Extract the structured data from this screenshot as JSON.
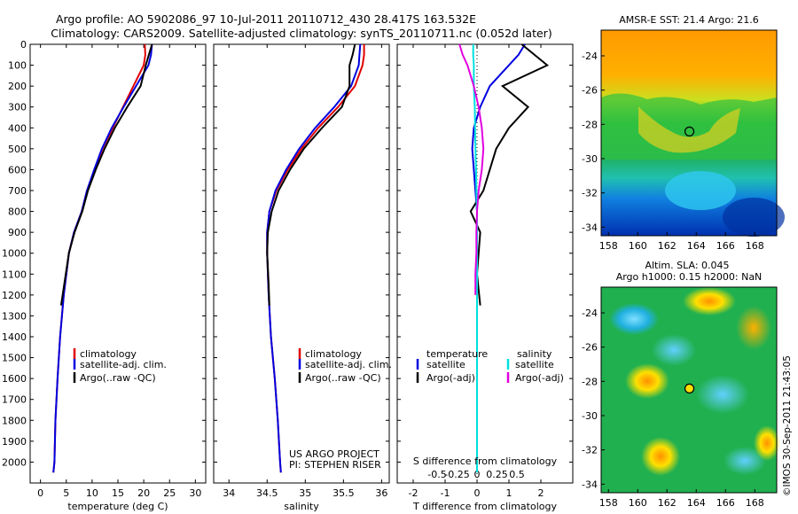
{
  "title": {
    "line1": "Argo profile: AO 5902086_97 10-Jul-2011 20110712_430 28.417S 163.532E",
    "line2": "Climatology: CARS2009. Satellite-adjusted climatology: synTS_20110711.nc (0.052d later)"
  },
  "colors": {
    "climatology": "#e00000",
    "satellite": "#0000e0",
    "argo": "#000000",
    "satellite_s": "#00e0e0",
    "argo_s": "#e000e0"
  },
  "chart_data": [
    {
      "type": "line",
      "id": "temperature",
      "xlabel": "temperature (deg C)",
      "ylabel": "",
      "xlim": [
        -2,
        32
      ],
      "ylim": [
        2100,
        0
      ],
      "xticks": [
        0,
        5,
        10,
        15,
        20,
        25,
        30
      ],
      "yticks": [
        0,
        100,
        200,
        300,
        400,
        500,
        600,
        700,
        800,
        900,
        1000,
        1100,
        1200,
        1300,
        1400,
        1500,
        1600,
        1700,
        1800,
        1900,
        2000
      ],
      "legend": [
        "climatology",
        "satellite-adj. clim.",
        "Argo(..raw -QC)"
      ],
      "legend_position": "lower-center",
      "series": [
        {
          "name": "climatology",
          "color": "#e00000",
          "x": [
            20.2,
            20.3,
            20.0,
            18.0,
            16.0,
            14.0,
            12.0,
            10.5,
            9.0,
            8.0,
            6.5,
            5.5,
            4.5,
            3.8,
            3.3,
            2.9,
            2.7,
            2.5
          ],
          "y": [
            0,
            50,
            100,
            200,
            300,
            400,
            500,
            600,
            700,
            800,
            900,
            1000,
            1200,
            1400,
            1600,
            1800,
            2000,
            2050
          ]
        },
        {
          "name": "satellite",
          "color": "#0000e0",
          "x": [
            21.6,
            21.4,
            20.9,
            18.5,
            16.1,
            13.8,
            11.9,
            10.4,
            9.0,
            8.0,
            6.5,
            5.5,
            4.5,
            3.8,
            3.3,
            2.9,
            2.7,
            2.5
          ],
          "y": [
            0,
            50,
            100,
            200,
            300,
            400,
            500,
            600,
            700,
            800,
            900,
            1000,
            1200,
            1400,
            1600,
            1800,
            2000,
            2050
          ]
        },
        {
          "name": "Argo",
          "color": "#000000",
          "x": [
            21.6,
            21.0,
            20.4,
            19.4,
            16.8,
            14.4,
            12.4,
            10.7,
            9.2,
            8.1,
            6.6,
            5.5,
            4.6,
            4.0
          ],
          "y": [
            0,
            50,
            100,
            200,
            300,
            400,
            500,
            600,
            700,
            800,
            900,
            1000,
            1150,
            1250
          ]
        }
      ]
    },
    {
      "type": "line",
      "id": "salinity",
      "xlabel": "salinity",
      "ylabel": "",
      "xlim": [
        33.8,
        36.1
      ],
      "ylim": [
        2100,
        0
      ],
      "xticks": [
        34,
        34.5,
        35,
        35.5,
        36
      ],
      "legend": [
        "climatology",
        "satellite-adj. clim.",
        "Argo(..raw -QC)"
      ],
      "legend_position": "lower-center",
      "annotation": [
        "US ARGO PROJECT",
        "PI: STEPHEN RISER"
      ],
      "series": [
        {
          "name": "climatology",
          "color": "#e00000",
          "x": [
            35.77,
            35.77,
            35.75,
            35.65,
            35.43,
            35.17,
            34.95,
            34.77,
            34.62,
            34.53,
            34.5,
            34.5,
            34.52,
            34.55,
            34.6,
            34.64,
            34.67,
            34.68
          ],
          "y": [
            0,
            50,
            100,
            200,
            300,
            400,
            500,
            600,
            700,
            800,
            900,
            1000,
            1200,
            1400,
            1600,
            1800,
            2000,
            2050
          ]
        },
        {
          "name": "satellite",
          "color": "#0000e0",
          "x": [
            35.72,
            35.71,
            35.7,
            35.6,
            35.38,
            35.13,
            34.92,
            34.75,
            34.61,
            34.53,
            34.5,
            34.5,
            34.52,
            34.55,
            34.6,
            34.64,
            34.67,
            34.68
          ],
          "y": [
            0,
            50,
            100,
            200,
            300,
            400,
            500,
            600,
            700,
            800,
            900,
            1000,
            1200,
            1400,
            1600,
            1800,
            2000,
            2050
          ]
        },
        {
          "name": "Argo",
          "color": "#000000",
          "x": [
            35.65,
            35.62,
            35.58,
            35.58,
            35.48,
            35.22,
            34.98,
            34.8,
            34.65,
            34.56,
            34.51,
            34.5,
            34.52,
            34.53
          ],
          "y": [
            0,
            50,
            100,
            200,
            300,
            400,
            500,
            600,
            700,
            800,
            900,
            1000,
            1150,
            1250
          ]
        }
      ]
    },
    {
      "type": "line",
      "id": "difference",
      "xlabel": "T difference from climatology",
      "xlabel2": "S difference from climatology",
      "xlim": [
        -2.5,
        3.0
      ],
      "ylim": [
        2100,
        0
      ],
      "xticks": [
        -2,
        -1,
        0,
        1,
        2
      ],
      "xticklabels": [
        "-2",
        "-1",
        "0",
        "1",
        "2"
      ],
      "xticks2": [
        -1.25,
        -0.625,
        0,
        0.625,
        1.25
      ],
      "xticklabels2": [
        "-0.5",
        "-0.25",
        "0",
        "0.25",
        "0.5"
      ],
      "legend_temperature": {
        "heading": "temperature",
        "items": [
          "satellite",
          "Argo(-adj)"
        ]
      },
      "legend_salinity": {
        "heading": "salinity",
        "items": [
          "satellite",
          "Argo(-adj)"
        ]
      },
      "legend_position": "lower-center",
      "series": [
        {
          "name": "T satellite",
          "color": "#0000e0",
          "x": [
            1.5,
            1.3,
            1.0,
            0.4,
            0.1,
            -0.1,
            -0.15,
            -0.1,
            -0.05,
            0.0,
            0.0,
            0.0,
            0.0
          ],
          "y": [
            0,
            50,
            100,
            200,
            300,
            400,
            500,
            600,
            700,
            800,
            900,
            1000,
            1250
          ]
        },
        {
          "name": "T Argo",
          "color": "#000000",
          "x": [
            1.4,
            2.2,
            0.8,
            1.6,
            1.0,
            0.6,
            0.4,
            0.2,
            -0.2,
            0.1,
            0.05,
            0.0,
            0.1
          ],
          "y": [
            0,
            100,
            200,
            300,
            400,
            500,
            600,
            700,
            800,
            900,
            1000,
            1100,
            1250
          ]
        },
        {
          "name": "S satellite",
          "color": "#00e0e0",
          "x": [
            -0.12,
            -0.12,
            -0.1,
            -0.1,
            -0.07,
            -0.06,
            -0.05,
            -0.03,
            -0.02,
            0.0,
            0.0,
            0.0,
            0.0,
            0.0,
            0.0,
            0.0
          ],
          "y": [
            0,
            50,
            100,
            200,
            300,
            400,
            500,
            600,
            700,
            800,
            900,
            1000,
            1200,
            1400,
            1700,
            2050
          ]
        },
        {
          "name": "S Argo",
          "color": "#e000e0",
          "x": [
            -0.55,
            -0.45,
            -0.3,
            -0.1,
            0.05,
            0.15,
            0.2,
            0.15,
            0.05,
            0.0,
            -0.02,
            -0.02,
            -0.05,
            -0.05
          ],
          "y": [
            0,
            50,
            100,
            200,
            300,
            400,
            500,
            600,
            700,
            800,
            900,
            1000,
            1100,
            1200
          ]
        }
      ]
    },
    {
      "type": "heatmap",
      "id": "sst-map",
      "title": "AMSR-E SST: 21.4 Argo: 21.6",
      "xlim": [
        157.5,
        169.5
      ],
      "ylim": [
        -34.5,
        -22.5
      ],
      "xticks": [
        158,
        160,
        162,
        164,
        166,
        168
      ],
      "yticks": [
        -24,
        -26,
        -28,
        -30,
        -32,
        -34
      ],
      "marker": {
        "lon": 163.532,
        "lat": -28.417
      }
    },
    {
      "type": "heatmap",
      "id": "sla-map",
      "title_line1": "Altim. SLA: 0.045",
      "title_line2": "Argo h1000: 0.15 h2000: NaN",
      "xlim": [
        157.5,
        169.5
      ],
      "ylim": [
        -34.5,
        -22.5
      ],
      "xticks": [
        158,
        160,
        162,
        164,
        166,
        168
      ],
      "yticks": [
        -24,
        -26,
        -28,
        -30,
        -32,
        -34
      ],
      "marker": {
        "lon": 163.532,
        "lat": -28.417
      }
    }
  ],
  "watermark": "©IMOS 30-Sep-2011 21:43:05"
}
